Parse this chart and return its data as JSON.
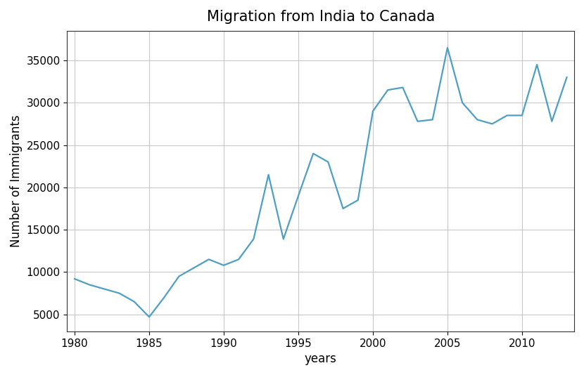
{
  "title": "Migration from India to Canada",
  "xlabel": "years",
  "ylabel": "Number of Immigrants",
  "line_color": "#4f9ec4",
  "background_color": "#ffffff",
  "grid_color": "#c8c8c8",
  "years": [
    1980,
    1981,
    1982,
    1983,
    1984,
    1985,
    1986,
    1987,
    1988,
    1989,
    1990,
    1991,
    1992,
    1993,
    1994,
    1995,
    1996,
    1997,
    1998,
    1999,
    2000,
    2001,
    2002,
    2003,
    2004,
    2005,
    2006,
    2007,
    2008,
    2009,
    2010,
    2011,
    2012,
    2013
  ],
  "immigrants": [
    9200,
    8500,
    8000,
    7500,
    6500,
    4700,
    7000,
    9500,
    10500,
    11500,
    10800,
    11500,
    13900,
    21500,
    13900,
    19000,
    24000,
    23000,
    17500,
    18500,
    29000,
    31500,
    31800,
    27800,
    28000,
    36500,
    30000,
    28000,
    27500,
    28500,
    28500,
    34500,
    27800,
    33000
  ],
  "xlim": [
    1979.5,
    2013.5
  ],
  "ylim": [
    3000,
    38500
  ],
  "xticks": [
    1980,
    1985,
    1990,
    1995,
    2000,
    2005,
    2010
  ],
  "yticks": [
    5000,
    10000,
    15000,
    20000,
    25000,
    30000,
    35000
  ],
  "title_fontsize": 15,
  "label_fontsize": 12,
  "tick_fontsize": 11,
  "linewidth": 1.6
}
